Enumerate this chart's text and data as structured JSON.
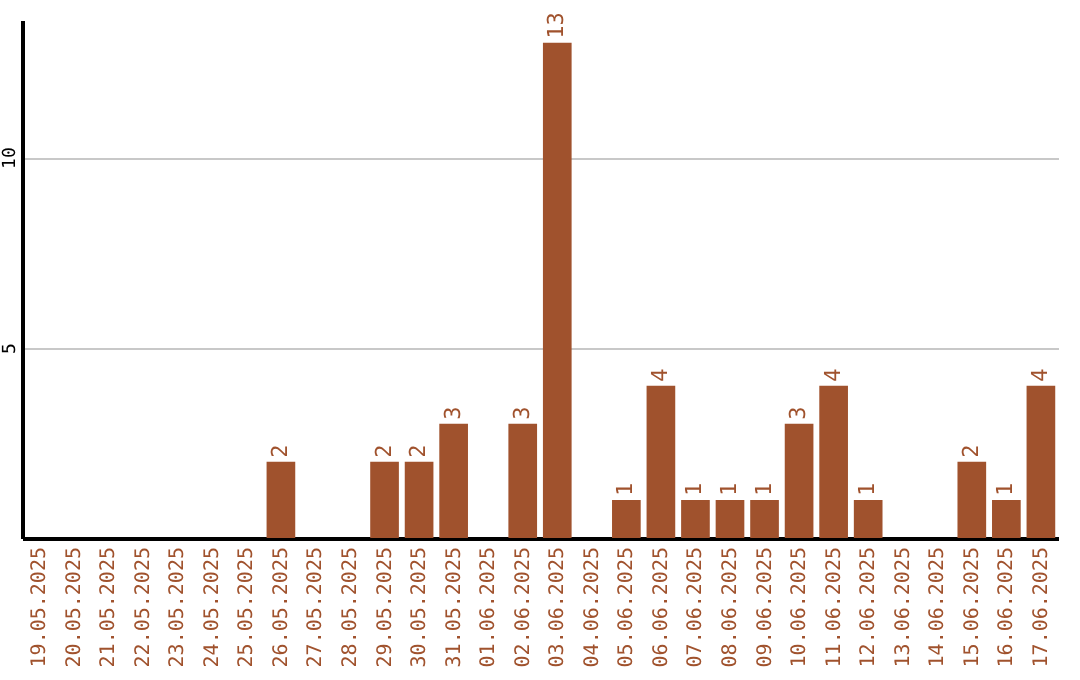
{
  "chart_data": {
    "type": "bar",
    "categories": [
      "19.05.2025",
      "20.05.2025",
      "21.05.2025",
      "22.05.2025",
      "23.05.2025",
      "24.05.2025",
      "25.05.2025",
      "26.05.2025",
      "27.05.2025",
      "28.05.2025",
      "29.05.2025",
      "30.05.2025",
      "31.05.2025",
      "01.06.2025",
      "02.06.2025",
      "03.06.2025",
      "04.06.2025",
      "05.06.2025",
      "06.06.2025",
      "07.06.2025",
      "08.06.2025",
      "09.06.2025",
      "10.06.2025",
      "11.06.2025",
      "12.06.2025",
      "13.06.2025",
      "14.06.2025",
      "15.06.2025",
      "16.06.2025",
      "17.06.2025"
    ],
    "values": [
      0,
      0,
      0,
      0,
      0,
      0,
      0,
      2,
      0,
      0,
      2,
      2,
      3,
      0,
      3,
      13,
      0,
      1,
      4,
      1,
      1,
      1,
      3,
      4,
      1,
      0,
      0,
      2,
      1,
      4
    ],
    "value_labels": [
      null,
      null,
      null,
      null,
      null,
      null,
      null,
      "2",
      null,
      null,
      "2",
      "2",
      "3",
      null,
      "3",
      "13",
      null,
      "1",
      "4",
      "1",
      "1",
      "1",
      "3",
      "4",
      "1",
      null,
      null,
      "2",
      "1",
      "4"
    ],
    "color": "#a0522d",
    "ylim": [
      0,
      13.6
    ],
    "yticks": [
      5,
      10
    ],
    "grid": "y"
  }
}
